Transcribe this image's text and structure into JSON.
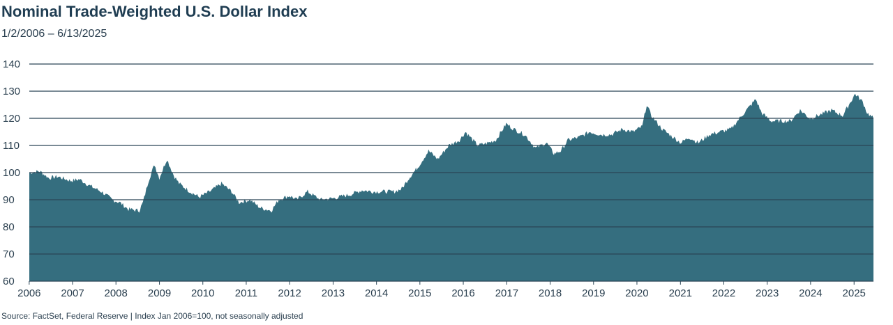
{
  "header": {
    "title": "Nominal Trade-Weighted U.S. Dollar Index",
    "subtitle": "1/2/2006 – 6/13/2025"
  },
  "footer": {
    "source": "Source: FactSet, Federal Reserve  |  Index Jan 2006=100, not seasonally adjusted"
  },
  "colors": {
    "area": "#356e7f",
    "grid": "#2a4556",
    "text": "#2a3f4f"
  },
  "chart_data": {
    "type": "area",
    "title": "Nominal Trade-Weighted U.S. Dollar Index",
    "subtitle": "1/2/2006 – 6/13/2025",
    "xlabel": "",
    "ylabel": "",
    "ylim": [
      60,
      140
    ],
    "xlim": [
      "2006-01-02",
      "2025-06-13"
    ],
    "grid": true,
    "yticks": [
      60,
      70,
      80,
      90,
      100,
      110,
      120,
      130,
      140
    ],
    "xticks": [
      "2006",
      "2007",
      "2008",
      "2009",
      "2010",
      "2011",
      "2012",
      "2013",
      "2014",
      "2015",
      "2016",
      "2017",
      "2018",
      "2019",
      "2020",
      "2021",
      "2022",
      "2023",
      "2024",
      "2025"
    ],
    "series": [
      {
        "values": [
          [
            "2006-01-02",
            100
          ],
          [
            "2006-04-01",
            100.5
          ],
          [
            "2006-06-15",
            98
          ],
          [
            "2006-09-01",
            98.5
          ],
          [
            "2006-12-15",
            97
          ],
          [
            "2007-03-01",
            97.5
          ],
          [
            "2007-06-01",
            95
          ],
          [
            "2007-09-01",
            93
          ],
          [
            "2007-12-01",
            90
          ],
          [
            "2008-02-01",
            89
          ],
          [
            "2008-04-15",
            86.5
          ],
          [
            "2008-07-15",
            86
          ],
          [
            "2008-08-15",
            89
          ],
          [
            "2008-10-01",
            97
          ],
          [
            "2008-11-20",
            103
          ],
          [
            "2008-12-31",
            98
          ],
          [
            "2009-03-05",
            105
          ],
          [
            "2009-05-01",
            99
          ],
          [
            "2009-06-15",
            96
          ],
          [
            "2009-09-15",
            93
          ],
          [
            "2009-12-01",
            91
          ],
          [
            "2010-01-15",
            92
          ],
          [
            "2010-03-01",
            93
          ],
          [
            "2010-06-07",
            96
          ],
          [
            "2010-09-01",
            93
          ],
          [
            "2010-11-01",
            89
          ],
          [
            "2011-02-01",
            90
          ],
          [
            "2011-05-01",
            87
          ],
          [
            "2011-08-01",
            86
          ],
          [
            "2011-10-01",
            90
          ],
          [
            "2012-01-01",
            91.5
          ],
          [
            "2012-03-01",
            90
          ],
          [
            "2012-06-01",
            93
          ],
          [
            "2012-09-15",
            90
          ],
          [
            "2013-01-01",
            90.5
          ],
          [
            "2013-06-01",
            92
          ],
          [
            "2013-09-01",
            93.5
          ],
          [
            "2013-12-01",
            93
          ],
          [
            "2014-03-01",
            93
          ],
          [
            "2014-06-01",
            93
          ],
          [
            "2014-08-01",
            94
          ],
          [
            "2014-10-01",
            98
          ],
          [
            "2014-12-15",
            102
          ],
          [
            "2015-03-15",
            108
          ],
          [
            "2015-06-01",
            105
          ],
          [
            "2015-09-01",
            110
          ],
          [
            "2015-12-01",
            112
          ],
          [
            "2016-01-20",
            115
          ],
          [
            "2016-05-01",
            110
          ],
          [
            "2016-08-01",
            111
          ],
          [
            "2016-10-01",
            112
          ],
          [
            "2016-12-28",
            118
          ],
          [
            "2017-03-01",
            116
          ],
          [
            "2017-06-01",
            114
          ],
          [
            "2017-09-01",
            109
          ],
          [
            "2017-12-01",
            111
          ],
          [
            "2018-02-01",
            107
          ],
          [
            "2018-04-01",
            108
          ],
          [
            "2018-06-01",
            112
          ],
          [
            "2018-09-01",
            113
          ],
          [
            "2018-12-01",
            115
          ],
          [
            "2019-03-01",
            114
          ],
          [
            "2019-06-01",
            114
          ],
          [
            "2019-09-01",
            116
          ],
          [
            "2019-12-01",
            115
          ],
          [
            "2020-02-15",
            117
          ],
          [
            "2020-03-23",
            125
          ],
          [
            "2020-05-01",
            121
          ],
          [
            "2020-08-01",
            116
          ],
          [
            "2020-11-01",
            113
          ],
          [
            "2021-01-05",
            111
          ],
          [
            "2021-03-15",
            113
          ],
          [
            "2021-06-01",
            111
          ],
          [
            "2021-09-01",
            114
          ],
          [
            "2021-12-01",
            115
          ],
          [
            "2022-03-01",
            116
          ],
          [
            "2022-06-01",
            121
          ],
          [
            "2022-09-27",
            127
          ],
          [
            "2022-11-15",
            122
          ],
          [
            "2023-02-01",
            119
          ],
          [
            "2023-04-01",
            119
          ],
          [
            "2023-07-15",
            119
          ],
          [
            "2023-10-05",
            123
          ],
          [
            "2023-12-27",
            120
          ],
          [
            "2024-03-01",
            121
          ],
          [
            "2024-06-25",
            123
          ],
          [
            "2024-09-27",
            121
          ],
          [
            "2025-01-10",
            129
          ],
          [
            "2025-03-15",
            126
          ],
          [
            "2025-04-21",
            122
          ],
          [
            "2025-06-13",
            120
          ]
        ]
      }
    ]
  }
}
